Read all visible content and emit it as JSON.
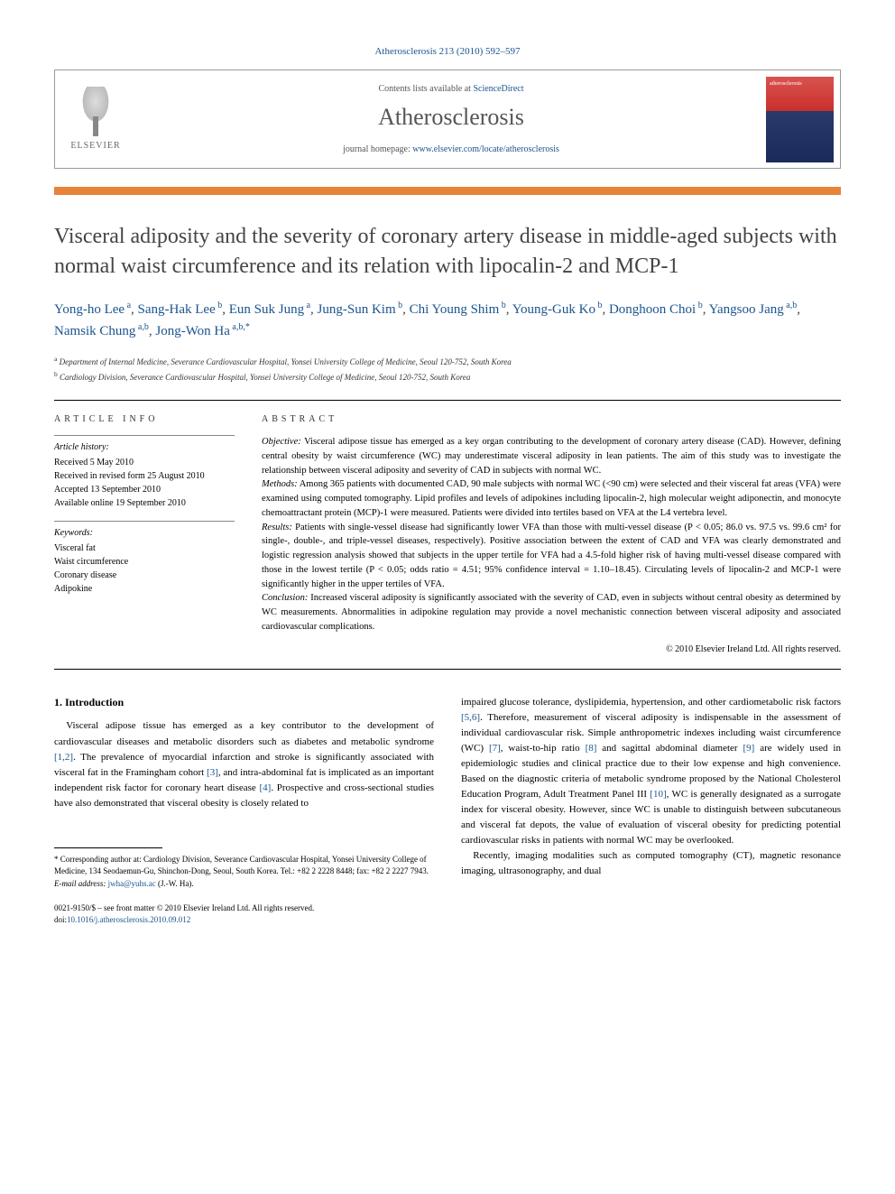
{
  "citation": {
    "prefix": "Atherosclerosis 213 (2010) 592–597",
    "link_text": "Atherosclerosis 213 (2010) 592–597"
  },
  "header": {
    "contents_prefix": "Contents lists available at ",
    "contents_link": "ScienceDirect",
    "journal_name": "Atherosclerosis",
    "homepage_prefix": "journal homepage: ",
    "homepage_link": "www.elsevier.com/locate/atherosclerosis",
    "elsevier_label": "ELSEVIER",
    "cover_label": "atherosclerosis"
  },
  "article_title": "Visceral adiposity and the severity of coronary artery disease in middle-aged subjects with normal waist circumference and its relation with lipocalin-2 and MCP-1",
  "authors_html_parts": [
    {
      "name": "Yong-ho Lee",
      "aff": "a"
    },
    {
      "name": "Sang-Hak Lee",
      "aff": "b"
    },
    {
      "name": "Eun Suk Jung",
      "aff": "a"
    },
    {
      "name": "Jung-Sun Kim",
      "aff": "b"
    },
    {
      "name": "Chi Young Shim",
      "aff": "b"
    },
    {
      "name": "Young-Guk Ko",
      "aff": "b"
    },
    {
      "name": "Donghoon Choi",
      "aff": "b"
    },
    {
      "name": "Yangsoo Jang",
      "aff": "a,b"
    },
    {
      "name": "Namsik Chung",
      "aff": "a,b"
    },
    {
      "name": "Jong-Won Ha",
      "aff": "a,b,*"
    }
  ],
  "affiliations": {
    "a": "Department of Internal Medicine, Severance Cardiovascular Hospital, Yonsei University College of Medicine, Seoul 120-752, South Korea",
    "b": "Cardiology Division, Severance Cardiovascular Hospital, Yonsei University College of Medicine, Seoul 120-752, South Korea"
  },
  "article_info": {
    "label": "article info",
    "history_head": "Article history:",
    "received": "Received 5 May 2010",
    "revised": "Received in revised form 25 August 2010",
    "accepted": "Accepted 13 September 2010",
    "online": "Available online 19 September 2010",
    "keywords_head": "Keywords:",
    "keywords": [
      "Visceral fat",
      "Waist circumference",
      "Coronary disease",
      "Adipokine"
    ]
  },
  "abstract": {
    "label": "abstract",
    "objective_label": "Objective:",
    "objective": " Visceral adipose tissue has emerged as a key organ contributing to the development of coronary artery disease (CAD). However, defining central obesity by waist circumference (WC) may underestimate visceral adiposity in lean patients. The aim of this study was to investigate the relationship between visceral adiposity and severity of CAD in subjects with normal WC.",
    "methods_label": "Methods:",
    "methods": " Among 365 patients with documented CAD, 90 male subjects with normal WC (<90 cm) were selected and their visceral fat areas (VFA) were examined using computed tomography. Lipid profiles and levels of adipokines including lipocalin-2, high molecular weight adiponectin, and monocyte chemoattractant protein (MCP)-1 were measured. Patients were divided into tertiles based on VFA at the L4 vertebra level.",
    "results_label": "Results:",
    "results": " Patients with single-vessel disease had significantly lower VFA than those with multi-vessel disease (P < 0.05; 86.0 vs. 97.5 vs. 99.6 cm² for single-, double-, and triple-vessel diseases, respectively). Positive association between the extent of CAD and VFA was clearly demonstrated and logistic regression analysis showed that subjects in the upper tertile for VFA had a 4.5-fold higher risk of having multi-vessel disease compared with those in the lowest tertile (P < 0.05; odds ratio = 4.51; 95% confidence interval = 1.10–18.45). Circulating levels of lipocalin-2 and MCP-1 were significantly higher in the upper tertiles of VFA.",
    "conclusion_label": "Conclusion:",
    "conclusion": " Increased visceral adiposity is significantly associated with the severity of CAD, even in subjects without central obesity as determined by WC measurements. Abnormalities in adipokine regulation may provide a novel mechanistic connection between visceral adiposity and associated cardiovascular complications.",
    "copyright": "© 2010 Elsevier Ireland Ltd. All rights reserved."
  },
  "intro": {
    "heading": "1. Introduction",
    "col1_p1_a": "Visceral adipose tissue has emerged as a key contributor to the development of cardiovascular diseases and metabolic disorders such as diabetes and metabolic syndrome ",
    "ref12": "[1,2]",
    "col1_p1_b": ". The prevalence of myocardial infarction and stroke is significantly associated with visceral fat in the Framingham cohort ",
    "ref3": "[3]",
    "col1_p1_c": ", and intra-abdominal fat is implicated as an important independent risk factor for coronary heart disease ",
    "ref4": "[4]",
    "col1_p1_d": ". Prospective and cross-sectional studies have also demonstrated that visceral obesity is closely related to",
    "col2_p1_a": "impaired glucose tolerance, dyslipidemia, hypertension, and other cardiometabolic risk factors ",
    "ref56": "[5,6]",
    "col2_p1_b": ". Therefore, measurement of visceral adiposity is indispensable in the assessment of individual cardiovascular risk. Simple anthropometric indexes including waist circumference (WC) ",
    "ref7": "[7]",
    "col2_p1_c": ", waist-to-hip ratio ",
    "ref8": "[8]",
    "col2_p1_d": " and sagittal abdominal diameter ",
    "ref9": "[9]",
    "col2_p1_e": " are widely used in epidemiologic studies and clinical practice due to their low expense and high convenience. Based on the diagnostic criteria of metabolic syndrome proposed by the National Cholesterol Education Program, Adult Treatment Panel III ",
    "ref10": "[10]",
    "col2_p1_f": ", WC is generally designated as a surrogate index for visceral obesity. However, since WC is unable to distinguish between subcutaneous and visceral fat depots, the value of evaluation of visceral obesity for predicting potential cardiovascular risks in patients with normal WC may be overlooked.",
    "col2_p2": "Recently, imaging modalities such as computed tomography (CT), magnetic resonance imaging, ultrasonography, and dual"
  },
  "footnotes": {
    "corr_marker": "*",
    "corr_text": " Corresponding author at: Cardiology Division, Severance Cardiovascular Hospital, Yonsei University College of Medicine, 134 Seodaemun-Gu, Shinchon-Dong, Seoul, South Korea. Tel.: +82 2 2228 8448; fax: +82 2 2227 7943.",
    "email_label": "E-mail address: ",
    "email": "jwha@yuhs.ac",
    "email_suffix": " (J.-W. Ha)."
  },
  "doi": {
    "issn_line": "0021-9150/$ – see front matter © 2010 Elsevier Ireland Ltd. All rights reserved.",
    "doi_prefix": "doi:",
    "doi_link": "10.1016/j.atherosclerosis.2010.09.012"
  },
  "colors": {
    "link": "#1a5490",
    "orange_bar": "#e8833a",
    "text": "#000000",
    "muted": "#444444"
  }
}
